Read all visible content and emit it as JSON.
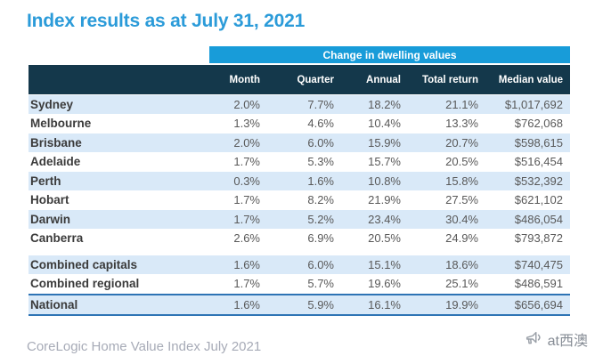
{
  "title": "Index results as at July 31, 2021",
  "colors": {
    "title_blue": "#2B9BD9",
    "band_blue": "#189CD9",
    "header_navy": "#14384B",
    "row_stripe": "#D9E9F8",
    "label_text": "#3B3B3B",
    "value_text": "#595959",
    "national_border": "#2E74B5",
    "footer_text": "#A7ABB7",
    "watermark_text": "#868C95"
  },
  "table": {
    "band_label": "Change in dwelling values",
    "columns": [
      "Month",
      "Quarter",
      "Annual",
      "Total return",
      "Median value"
    ],
    "rows": [
      {
        "label": "Sydney",
        "values": [
          "2.0%",
          "7.7%",
          "18.2%",
          "21.1%",
          "$1,017,692"
        ],
        "striped": true,
        "national": false,
        "spacer_after": false
      },
      {
        "label": "Melbourne",
        "values": [
          "1.3%",
          "4.6%",
          "10.4%",
          "13.3%",
          "$762,068"
        ],
        "striped": false,
        "national": false,
        "spacer_after": false
      },
      {
        "label": "Brisbane",
        "values": [
          "2.0%",
          "6.0%",
          "15.9%",
          "20.7%",
          "$598,615"
        ],
        "striped": true,
        "national": false,
        "spacer_after": false
      },
      {
        "label": "Adelaide",
        "values": [
          "1.7%",
          "5.3%",
          "15.7%",
          "20.5%",
          "$516,454"
        ],
        "striped": false,
        "national": false,
        "spacer_after": false
      },
      {
        "label": "Perth",
        "values": [
          "0.3%",
          "1.6%",
          "10.8%",
          "15.8%",
          "$532,392"
        ],
        "striped": true,
        "national": false,
        "spacer_after": false
      },
      {
        "label": "Hobart",
        "values": [
          "1.7%",
          "8.2%",
          "21.9%",
          "27.5%",
          "$621,102"
        ],
        "striped": false,
        "national": false,
        "spacer_after": false
      },
      {
        "label": "Darwin",
        "values": [
          "1.7%",
          "5.2%",
          "23.4%",
          "30.4%",
          "$486,054"
        ],
        "striped": true,
        "national": false,
        "spacer_after": false
      },
      {
        "label": "Canberra",
        "values": [
          "2.6%",
          "6.9%",
          "20.5%",
          "24.9%",
          "$793,872"
        ],
        "striped": false,
        "national": false,
        "spacer_after": true
      },
      {
        "label": "Combined capitals",
        "values": [
          "1.6%",
          "6.0%",
          "15.1%",
          "18.6%",
          "$740,475"
        ],
        "striped": true,
        "national": false,
        "spacer_after": false
      },
      {
        "label": "Combined regional",
        "values": [
          "1.7%",
          "5.7%",
          "19.6%",
          "25.1%",
          "$486,591"
        ],
        "striped": false,
        "national": false,
        "spacer_after": false
      },
      {
        "label": "National",
        "values": [
          "1.6%",
          "5.9%",
          "16.1%",
          "19.9%",
          "$656,694"
        ],
        "striped": true,
        "national": true,
        "spacer_after": false
      }
    ]
  },
  "footer": "CoreLogic Home Value Index July 2021",
  "watermark": {
    "label": "at西澳",
    "icon": "megaphone-icon"
  }
}
